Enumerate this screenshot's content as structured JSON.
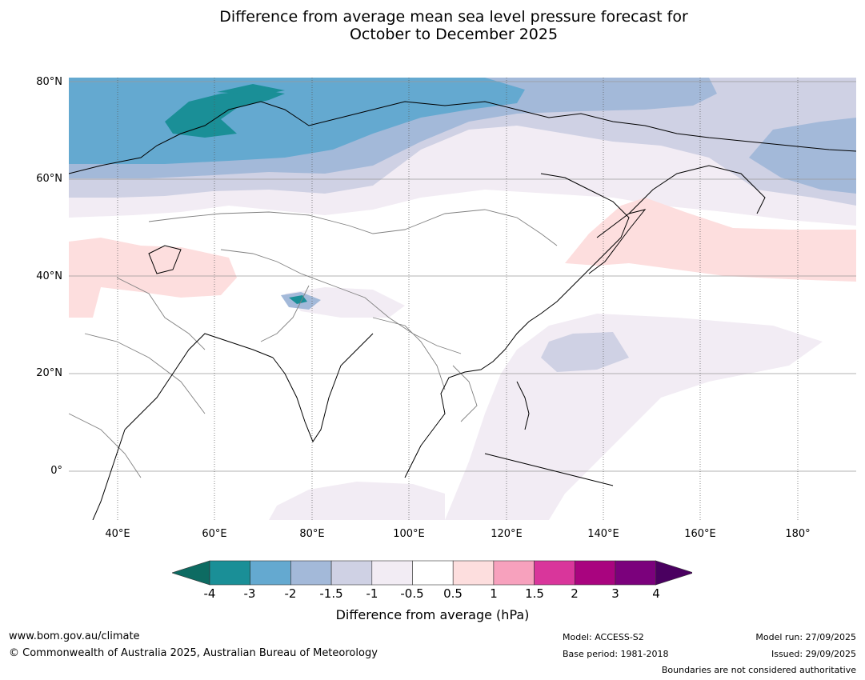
{
  "title": {
    "line1": "Difference from average mean sea level pressure forecast for",
    "line2": "October to December 2025"
  },
  "axes": {
    "lat_ticks": [
      "80°N",
      "60°N",
      "40°N",
      "20°N",
      "0°"
    ],
    "lon_ticks": [
      "40°E",
      "60°E",
      "80°E",
      "100°E",
      "120°E",
      "140°E",
      "160°E",
      "180°"
    ]
  },
  "colorbar": {
    "label": "Difference from average (hPa)",
    "ticks": [
      "-4",
      "-3",
      "-2",
      "-1.5",
      "-1",
      "-0.5",
      "0.5",
      "1",
      "1.5",
      "2",
      "3",
      "4"
    ],
    "colors": {
      "below": "#0d6b62",
      "bins": [
        "#1a8f97",
        "#64a9d0",
        "#a3b9d9",
        "#cfd1e4",
        "#f2ecf4",
        "#ffffff",
        "#fddede",
        "#f7a1bd",
        "#d9369b",
        "#a9047f",
        "#7b017c"
      ],
      "above": "#4a0060"
    }
  },
  "footer": {
    "website": "www.bom.gov.au/climate",
    "copyright": "© Commonwealth of Australia 2025, Australian Bureau of Meteorology",
    "model": "Model: ACCESS-S2",
    "base_period": "Base period: 1981-2018",
    "model_run": "Model run: 27/09/2025",
    "issued": "Issued: 29/09/2025",
    "disclaimer": "Boundaries are not considered authoritative"
  }
}
